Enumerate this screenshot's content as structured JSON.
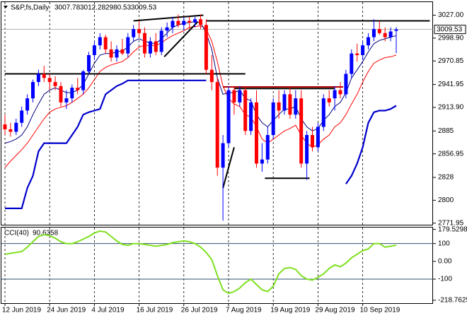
{
  "chart_data": {
    "type": "candlestick",
    "title": "S&P,fs,Daily",
    "categories": [
      "12 Jun 2019",
      null,
      null,
      null,
      null,
      null,
      null,
      null,
      "24 Jun 2019",
      null,
      null,
      null,
      null,
      null,
      null,
      null,
      "4 Jul 2019",
      null,
      null,
      null,
      null,
      null,
      null,
      null,
      "16 Jul 2019",
      null,
      null,
      null,
      null,
      null,
      null,
      null,
      "26 Jul 2019",
      null,
      null,
      null,
      null,
      null,
      null,
      null,
      "7 Aug 2019",
      null,
      null,
      null,
      null,
      null,
      null,
      null,
      "19 Aug 2019",
      null,
      null,
      null,
      null,
      null,
      null,
      null,
      "29 Aug 2019",
      null,
      null,
      null,
      null,
      null,
      null,
      null,
      "10 Sep 2019",
      null,
      null,
      null,
      null,
      null,
      null
    ],
    "up_color": "#0000ff",
    "down_color": "#ff0000",
    "open": [
      2893,
      2887,
      2884,
      2895,
      2910,
      2925,
      2945,
      2955,
      2950,
      2945,
      2940,
      2920,
      2925,
      2938,
      2935,
      2958,
      2978,
      2990,
      3000,
      2985,
      2975,
      2985,
      2980,
      3000,
      3010,
      3005,
      2980,
      2995,
      2982,
      3008,
      3012,
      3020,
      3015,
      3020,
      3018,
      3022,
      3015,
      2960,
      2945,
      2840,
      2870,
      2935,
      2920,
      2935,
      2885,
      2920,
      2845,
      2850,
      2880,
      2920,
      2910,
      2930,
      2905,
      2925,
      2845,
      2880,
      2865,
      2890,
      2925,
      2925,
      2935,
      2930,
      2955,
      2980,
      2978,
      2990,
      3000,
      3010,
      3005,
      3000,
      3007.78
    ],
    "high": [
      2905,
      2895,
      2900,
      2915,
      2930,
      2948,
      2960,
      2965,
      2955,
      2952,
      2945,
      2935,
      2942,
      2950,
      2960,
      2982,
      2995,
      3005,
      3003,
      2995,
      2990,
      2998,
      3005,
      3015,
      3020,
      3012,
      3000,
      3005,
      3012,
      3018,
      3025,
      3028,
      3024,
      3025,
      3025,
      3028,
      3022,
      2978,
      2950,
      2880,
      2940,
      2940,
      2940,
      2940,
      2925,
      2935,
      2870,
      2890,
      2925,
      2935,
      2935,
      2938,
      2935,
      2935,
      2885,
      2890,
      2895,
      2930,
      2935,
      2940,
      2945,
      2960,
      2985,
      2992,
      2995,
      3005,
      3022,
      3020,
      3012,
      3012,
      3012.28
    ],
    "low": [
      2880,
      2878,
      2880,
      2890,
      2905,
      2920,
      2940,
      2945,
      2935,
      2935,
      2915,
      2912,
      2920,
      2930,
      2930,
      2955,
      2972,
      2985,
      2980,
      2970,
      2970,
      2978,
      2975,
      2995,
      3000,
      2975,
      2975,
      2978,
      2978,
      3000,
      3005,
      3012,
      3008,
      3010,
      3012,
      3010,
      2955,
      2935,
      2830,
      2775,
      2865,
      2905,
      2915,
      2880,
      2880,
      2840,
      2835,
      2845,
      2875,
      2900,
      2905,
      2900,
      2900,
      2840,
      2825,
      2860,
      2860,
      2885,
      2915,
      2910,
      2925,
      2925,
      2950,
      2970,
      2972,
      2985,
      2995,
      3003,
      2995,
      2995,
      2980.53
    ],
    "close": [
      2887,
      2884,
      2895,
      2910,
      2925,
      2945,
      2955,
      2950,
      2945,
      2940,
      2920,
      2925,
      2938,
      2935,
      2958,
      2978,
      2990,
      3000,
      2985,
      2975,
      2985,
      2980,
      3000,
      3010,
      3005,
      2980,
      2995,
      2982,
      3008,
      3012,
      3020,
      3015,
      3020,
      3018,
      3022,
      3015,
      2960,
      2945,
      2840,
      2870,
      2935,
      2920,
      2935,
      2885,
      2920,
      2845,
      2850,
      2880,
      2920,
      2910,
      2930,
      2905,
      2925,
      2845,
      2880,
      2865,
      2890,
      2925,
      2920,
      2935,
      2930,
      2955,
      2980,
      2978,
      2990,
      3000,
      3010,
      3005,
      3000,
      3007,
      3009.53
    ],
    "overlays": [
      {
        "color": "#ff0000",
        "values": [
          2840,
          2848,
          2855,
          2862,
          2870,
          2880,
          2890,
          2900,
          2908,
          2912,
          2914,
          2916,
          2920,
          2925,
          2930,
          2938,
          2948,
          2958,
          2963,
          2966,
          2968,
          2970,
          2975,
          2982,
          2988,
          2990,
          2990,
          2990,
          2993,
          2998,
          3002,
          3005,
          3008,
          3012,
          3013,
          3014,
          3010,
          2995,
          2970,
          2940,
          2925,
          2918,
          2915,
          2905,
          2902,
          2890,
          2875,
          2870,
          2875,
          2880,
          2885,
          2888,
          2892,
          2880,
          2870,
          2865,
          2868,
          2875,
          2880,
          2890,
          2895,
          2905,
          2918,
          2930,
          2945,
          2958,
          2968,
          2972,
          2975,
          2976,
          2978
        ]
      },
      {
        "color": "#000080",
        "values": [
          2870,
          2872,
          2875,
          2880,
          2890,
          2905,
          2918,
          2930,
          2935,
          2938,
          2935,
          2932,
          2932,
          2935,
          2942,
          2955,
          2968,
          2978,
          2980,
          2980,
          2982,
          2983,
          2988,
          2995,
          2998,
          2995,
          2993,
          2992,
          2998,
          3005,
          3012,
          3015,
          3017,
          3018,
          3019,
          3018,
          3005,
          2985,
          2950,
          2930,
          2932,
          2932,
          2935,
          2925,
          2922,
          2905,
          2895,
          2890,
          2898,
          2905,
          2912,
          2912,
          2915,
          2900,
          2890,
          2885,
          2888,
          2898,
          2905,
          2915,
          2920,
          2932,
          2950,
          2960,
          2970,
          2982,
          2992,
          2996,
          2998,
          3000,
          3002
        ]
      },
      {
        "color": "#0000cc",
        "values": [
          2790,
          2790,
          2790,
          2790,
          2815,
          2830,
          2860,
          2870,
          2870,
          2870,
          2870,
          2870,
          2880,
          2890,
          2905,
          2908,
          2910,
          2912,
          2930,
          2935,
          2940,
          2943,
          2947,
          2947,
          2947,
          2947,
          2947,
          2947,
          2947,
          2947,
          2947,
          2947,
          2947,
          2947,
          2947,
          2947,
          2947,
          null,
          null,
          null,
          null,
          null,
          null,
          null,
          null,
          null,
          null,
          null,
          null,
          null,
          null,
          null,
          null,
          null,
          null,
          null,
          null,
          null,
          null,
          null,
          null,
          2820,
          2830,
          2845,
          2865,
          2895,
          2908,
          2910,
          2910,
          2912,
          2916
        ]
      }
    ],
    "drawings": [
      {
        "color": "#000000",
        "from": [
          36,
          3020
        ],
        "to": [
          76,
          3020
        ]
      },
      {
        "color": "#000000",
        "from": [
          0,
          2955
        ],
        "to": [
          43,
          2955
        ]
      },
      {
        "color": "#b00000",
        "from": [
          39,
          2939
        ],
        "to": [
          60.5,
          2939
        ]
      },
      {
        "color": "#000000",
        "from": [
          41,
          2937
        ],
        "to": [
          59,
          2937
        ]
      },
      {
        "color": "#000000",
        "from": [
          46.5,
          2827
        ],
        "to": [
          54.5,
          2827
        ]
      },
      {
        "color": "#000000",
        "from": [
          23,
          3020
        ],
        "to": [
          35.5,
          3027
        ]
      },
      {
        "color": "#000000",
        "from": [
          28.5,
          2976
        ],
        "to": [
          34.5,
          3019
        ]
      },
      {
        "color": "#000000",
        "from": [
          39,
          2815
        ],
        "to": [
          41,
          2865
        ]
      }
    ],
    "ylim": [
      2770,
      3043
    ],
    "yticks": [
      {
        "value": 3027,
        "label": "3027.00"
      },
      {
        "value": 2998.9,
        "label": "2998.90"
      },
      {
        "value": 2970.85,
        "label": "2970.85"
      },
      {
        "value": 2941.95,
        "label": "2941.95"
      },
      {
        "value": 2913.9,
        "label": "2913.90"
      },
      2885,
      {
        "value": 2856.95,
        "label": "2856.95"
      },
      2828,
      2800,
      {
        "value": 2771.95,
        "label": "2771.95"
      }
    ],
    "cci": {
      "label": "CCI(40)",
      "color": "#7ee01e",
      "values": [
        40,
        45,
        50,
        55,
        80,
        110,
        140,
        150,
        145,
        130,
        110,
        100,
        100,
        110,
        125,
        140,
        160,
        170,
        165,
        140,
        115,
        95,
        90,
        100,
        100,
        95,
        90,
        85,
        90,
        95,
        105,
        110,
        115,
        110,
        100,
        80,
        50,
        10,
        -80,
        -160,
        -180,
        -170,
        -150,
        -120,
        -100,
        -130,
        -160,
        -170,
        -140,
        -70,
        -40,
        -35,
        -45,
        -80,
        -100,
        -105,
        -90,
        -70,
        -40,
        -20,
        -30,
        -10,
        20,
        40,
        60,
        70,
        100,
        100,
        80,
        85,
        90.6358
      ],
      "levels": [
        100,
        -100
      ],
      "ylim": [
        -235,
        190
      ],
      "yticks": [
        179.5298,
        100,
        {
          "value": 0,
          "label": "0.00"
        },
        -100,
        -218.7625
      ]
    }
  }
}
